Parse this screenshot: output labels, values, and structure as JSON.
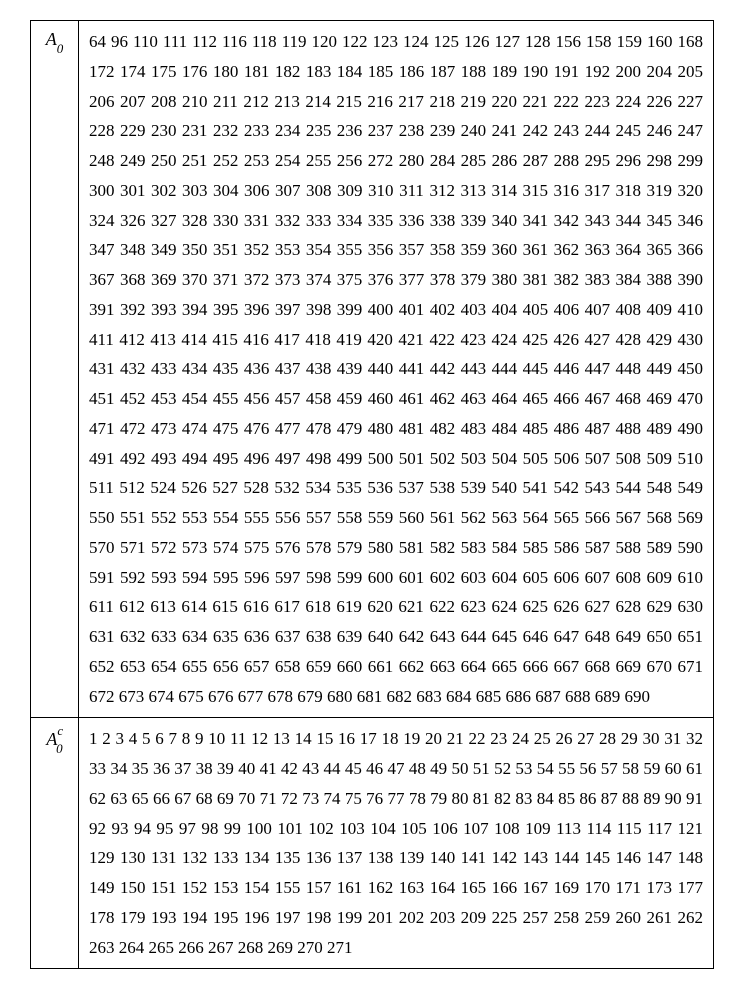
{
  "table": {
    "background_color": "#ffffff",
    "border_color": "#000000",
    "font_family": "Times New Roman, serif",
    "font_size_data": 17,
    "font_size_label": 18,
    "line_height": 1.75,
    "rows": [
      {
        "label_main": "A",
        "label_sub": "0",
        "label_sup": "",
        "values": [
          64,
          96,
          110,
          111,
          112,
          116,
          118,
          119,
          120,
          122,
          123,
          124,
          125,
          126,
          127,
          128,
          156,
          158,
          159,
          160,
          168,
          172,
          174,
          175,
          176,
          180,
          181,
          182,
          183,
          184,
          185,
          186,
          187,
          188,
          189,
          190,
          191,
          192,
          200,
          204,
          205,
          206,
          207,
          208,
          210,
          211,
          212,
          213,
          214,
          215,
          216,
          217,
          218,
          219,
          220,
          221,
          222,
          223,
          224,
          226,
          227,
          228,
          229,
          230,
          231,
          232,
          233,
          234,
          235,
          236,
          237,
          238,
          239,
          240,
          241,
          242,
          243,
          244,
          245,
          246,
          247,
          248,
          249,
          250,
          251,
          252,
          253,
          254,
          255,
          256,
          272,
          280,
          284,
          285,
          286,
          287,
          288,
          295,
          296,
          298,
          299,
          300,
          301,
          302,
          303,
          304,
          306,
          307,
          308,
          309,
          310,
          311,
          312,
          313,
          314,
          315,
          316,
          317,
          318,
          319,
          320,
          324,
          326,
          327,
          328,
          330,
          331,
          332,
          333,
          334,
          335,
          336,
          338,
          339,
          340,
          341,
          342,
          343,
          344,
          345,
          346,
          347,
          348,
          349,
          350,
          351,
          352,
          353,
          354,
          355,
          356,
          357,
          358,
          359,
          360,
          361,
          362,
          363,
          364,
          365,
          366,
          367,
          368,
          369,
          370,
          371,
          372,
          373,
          374,
          375,
          376,
          377,
          378,
          379,
          380,
          381,
          382,
          383,
          384,
          388,
          390,
          391,
          392,
          393,
          394,
          395,
          396,
          397,
          398,
          399,
          400,
          401,
          402,
          403,
          404,
          405,
          406,
          407,
          408,
          409,
          410,
          411,
          412,
          413,
          414,
          415,
          416,
          417,
          418,
          419,
          420,
          421,
          422,
          423,
          424,
          425,
          426,
          427,
          428,
          429,
          430,
          431,
          432,
          433,
          434,
          435,
          436,
          437,
          438,
          439,
          440,
          441,
          442,
          443,
          444,
          445,
          446,
          447,
          448,
          449,
          450,
          451,
          452,
          453,
          454,
          455,
          456,
          457,
          458,
          459,
          460,
          461,
          462,
          463,
          464,
          465,
          466,
          467,
          468,
          469,
          470,
          471,
          472,
          473,
          474,
          475,
          476,
          477,
          478,
          479,
          480,
          481,
          482,
          483,
          484,
          485,
          486,
          487,
          488,
          489,
          490,
          491,
          492,
          493,
          494,
          495,
          496,
          497,
          498,
          499,
          500,
          501,
          502,
          503,
          504,
          505,
          506,
          507,
          508,
          509,
          510,
          511,
          512,
          524,
          526,
          527,
          528,
          532,
          534,
          535,
          536,
          537,
          538,
          539,
          540,
          541,
          542,
          543,
          544,
          548,
          549,
          550,
          551,
          552,
          553,
          554,
          555,
          556,
          557,
          558,
          559,
          560,
          561,
          562,
          563,
          564,
          565,
          566,
          567,
          568,
          569,
          570,
          571,
          572,
          573,
          574,
          575,
          576,
          578,
          579,
          580,
          581,
          582,
          583,
          584,
          585,
          586,
          587,
          588,
          589,
          590,
          591,
          592,
          593,
          594,
          595,
          596,
          597,
          598,
          599,
          600,
          601,
          602,
          603,
          604,
          605,
          606,
          607,
          608,
          609,
          610,
          611,
          612,
          613,
          614,
          615,
          616,
          617,
          618,
          619,
          620,
          621,
          622,
          623,
          624,
          625,
          626,
          627,
          628,
          629,
          630,
          631,
          632,
          633,
          634,
          635,
          636,
          637,
          638,
          639,
          640,
          642,
          643,
          644,
          645,
          646,
          647,
          648,
          649,
          650,
          651,
          652,
          653,
          654,
          655,
          656,
          657,
          658,
          659,
          660,
          661,
          662,
          663,
          664,
          665,
          666,
          667,
          668,
          669,
          670,
          671,
          672,
          673,
          674,
          675,
          676,
          677,
          678,
          679,
          680,
          681,
          682,
          683,
          684,
          685,
          686,
          687,
          688,
          689,
          690
        ]
      },
      {
        "label_main": "A",
        "label_sub": "0",
        "label_sup": "c",
        "values": [
          1,
          2,
          3,
          4,
          5,
          6,
          7,
          8,
          9,
          10,
          11,
          12,
          13,
          14,
          15,
          16,
          17,
          18,
          19,
          20,
          21,
          22,
          23,
          24,
          25,
          26,
          27,
          28,
          29,
          30,
          31,
          32,
          33,
          34,
          35,
          36,
          37,
          38,
          39,
          40,
          41,
          42,
          43,
          44,
          45,
          46,
          47,
          48,
          49,
          50,
          51,
          52,
          53,
          54,
          55,
          56,
          57,
          58,
          59,
          60,
          61,
          62,
          63,
          65,
          66,
          67,
          68,
          69,
          70,
          71,
          72,
          73,
          74,
          75,
          76,
          77,
          78,
          79,
          80,
          81,
          82,
          83,
          84,
          85,
          86,
          87,
          88,
          89,
          90,
          91,
          92,
          93,
          94,
          95,
          97,
          98,
          99,
          100,
          101,
          102,
          103,
          104,
          105,
          106,
          107,
          108,
          109,
          113,
          114,
          115,
          117,
          121,
          129,
          130,
          131,
          132,
          133,
          134,
          135,
          136,
          137,
          138,
          139,
          140,
          141,
          142,
          143,
          144,
          145,
          146,
          147,
          148,
          149,
          150,
          151,
          152,
          153,
          154,
          155,
          157,
          161,
          162,
          163,
          164,
          165,
          166,
          167,
          169,
          170,
          171,
          173,
          177,
          178,
          179,
          193,
          194,
          195,
          196,
          197,
          198,
          199,
          201,
          202,
          203,
          209,
          225,
          257,
          258,
          259,
          260,
          261,
          262,
          263,
          264,
          265,
          266,
          267,
          268,
          269,
          270,
          271
        ]
      }
    ]
  }
}
